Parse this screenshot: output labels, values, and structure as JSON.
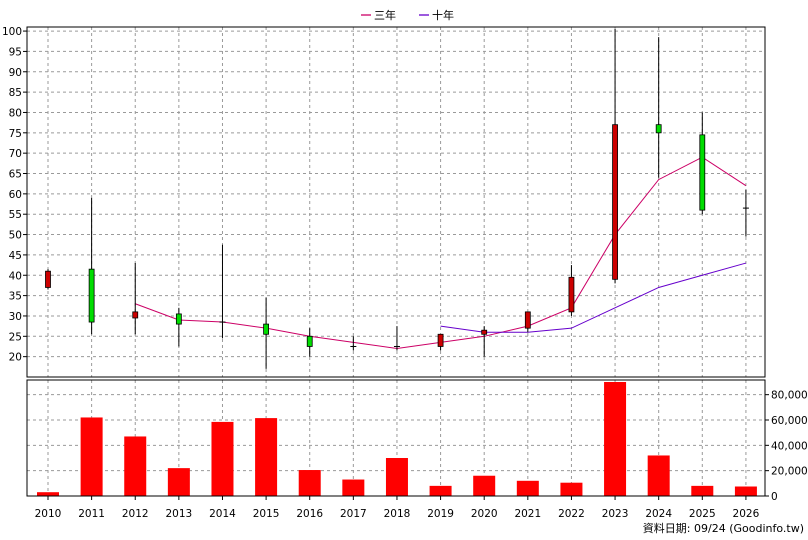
{
  "chart_data": {
    "type": "candlestick",
    "legend": {
      "placement": "top-center",
      "items": [
        {
          "label": "三年",
          "color": "#cc0066"
        },
        {
          "label": "十年",
          "color": "#6600cc"
        }
      ]
    },
    "x_labels": [
      "2010",
      "2011",
      "2012",
      "2013",
      "2014",
      "2015",
      "2016",
      "2017",
      "2018",
      "2019",
      "2020",
      "2021",
      "2022",
      "2023",
      "2024",
      "2025",
      "2026"
    ],
    "price_axis": {
      "ylim": [
        15,
        101
      ],
      "ticks": [
        20,
        25,
        30,
        35,
        40,
        45,
        50,
        55,
        60,
        65,
        70,
        75,
        80,
        85,
        90,
        95,
        100
      ],
      "grid": true
    },
    "candles": [
      {
        "year": "2010",
        "open": 37,
        "close": 41,
        "high": 41.5,
        "low": 36.5,
        "color": "red"
      },
      {
        "year": "2011",
        "open": 41.5,
        "close": 28.5,
        "high": 59,
        "low": 25.5,
        "color": "green"
      },
      {
        "year": "2012",
        "open": 29.5,
        "close": 31,
        "high": 43,
        "low": 25.5,
        "color": "red"
      },
      {
        "year": "2013",
        "open": 30.5,
        "close": 28,
        "high": 32,
        "low": 22.5,
        "color": "green"
      },
      {
        "year": "2014",
        "open": 28.5,
        "close": 28.5,
        "high": 47.5,
        "low": 24.5,
        "color": "black"
      },
      {
        "year": "2015",
        "open": 28,
        "close": 25.5,
        "high": 34.5,
        "low": 17,
        "color": "green"
      },
      {
        "year": "2016",
        "open": 25,
        "close": 22.5,
        "high": 27,
        "low": 20,
        "color": "green"
      },
      {
        "year": "2017",
        "open": 22.5,
        "close": 22.5,
        "high": 25,
        "low": 21.5,
        "color": "black"
      },
      {
        "year": "2018",
        "open": 22.5,
        "close": 22.5,
        "high": 27.5,
        "low": 21.5,
        "color": "black"
      },
      {
        "year": "2019",
        "open": 22.5,
        "close": 25.5,
        "high": 25.5,
        "low": 21.5,
        "color": "red"
      },
      {
        "year": "2020",
        "open": 25.5,
        "close": 26.5,
        "high": 27.5,
        "low": 20,
        "color": "red"
      },
      {
        "year": "2021",
        "open": 27,
        "close": 31,
        "high": 31,
        "low": 26,
        "color": "red"
      },
      {
        "year": "2022",
        "open": 31,
        "close": 39.5,
        "high": 42.5,
        "low": 30,
        "color": "red"
      },
      {
        "year": "2023",
        "open": 39,
        "close": 77,
        "high": 100.5,
        "low": 38,
        "color": "red"
      },
      {
        "year": "2024",
        "open": 77,
        "close": 75,
        "high": 98.5,
        "low": 64,
        "color": "green"
      },
      {
        "year": "2025",
        "open": 74.5,
        "close": 56,
        "high": 80,
        "low": 55,
        "color": "green"
      },
      {
        "year": "2026",
        "open": 56.5,
        "close": 56.5,
        "high": 61,
        "low": 49.5,
        "color": "black"
      }
    ],
    "series": [
      {
        "name": "三年",
        "color": "#cc0066",
        "x": [
          "2012",
          "2013",
          "2014",
          "2015",
          "2016",
          "2017",
          "2018",
          "2019",
          "2020",
          "2021",
          "2022",
          "2023",
          "2024",
          "2025",
          "2026"
        ],
        "values": [
          33,
          29,
          28.5,
          27,
          25,
          23.5,
          22,
          23.5,
          25,
          27.5,
          32,
          50,
          63.5,
          69,
          62
        ]
      },
      {
        "name": "十年",
        "color": "#6600cc",
        "x": [
          "2019",
          "2020",
          "2021",
          "2022",
          "2023",
          "2024",
          "2025",
          "2026"
        ],
        "values": [
          27.5,
          26,
          26,
          27,
          32,
          37,
          40,
          43
        ]
      }
    ],
    "volume_axis": {
      "ylim": [
        0,
        90000
      ],
      "ticks": [
        0,
        20000,
        40000,
        60000,
        80000
      ],
      "tick_labels": [
        "0",
        "20,000",
        "40,000",
        "60,000",
        "80,000"
      ],
      "color": "#ff0000"
    },
    "volume": [
      3000,
      62000,
      47000,
      22000,
      58500,
      61500,
      20500,
      13000,
      30000,
      8000,
      16000,
      12000,
      10500,
      90000,
      32000,
      8000,
      7500
    ]
  },
  "footer": "資料日期: 09/24 (Goodinfo.tw)"
}
